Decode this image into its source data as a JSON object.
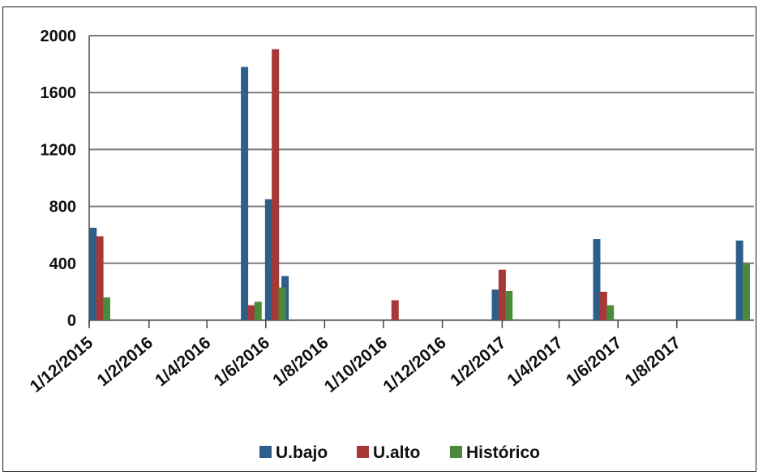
{
  "chart_data": {
    "type": "bar",
    "title": "",
    "xlabel": "",
    "ylabel": "",
    "ylim": [
      0,
      2000
    ],
    "y_ticks": [
      "2000",
      "1600",
      "1200",
      "800",
      "400",
      "0"
    ],
    "x_ticks": [
      "1/12/2015",
      "1/2/2016",
      "1/4/2016",
      "1/6/2016",
      "1/8/2016",
      "1/10/2016",
      "1/12/2016",
      "1/2/2017",
      "1/4/2017",
      "1/6/2017",
      "1/8/2017"
    ],
    "x_range": [
      "2015-12-01",
      "2017-10-20"
    ],
    "grid": "horizontal",
    "legend_position": "bottom",
    "series": [
      {
        "name": "U.bajo",
        "color": "#2e5e8a",
        "points": [
          {
            "date": "2015-12-05",
            "value": 650
          },
          {
            "date": "2016-05-10",
            "value": 1780
          },
          {
            "date": "2016-06-04",
            "value": 850
          },
          {
            "date": "2016-06-21",
            "value": 310
          },
          {
            "date": "2017-01-25",
            "value": 215
          },
          {
            "date": "2017-05-10",
            "value": 570
          },
          {
            "date": "2017-10-05",
            "value": 560
          }
        ]
      },
      {
        "name": "U.alto",
        "color": "#a83838",
        "points": [
          {
            "date": "2015-12-12",
            "value": 590
          },
          {
            "date": "2016-05-17",
            "value": 105
          },
          {
            "date": "2016-06-11",
            "value": 1905
          },
          {
            "date": "2016-10-13",
            "value": 140
          },
          {
            "date": "2017-02-01",
            "value": 355
          },
          {
            "date": "2017-05-17",
            "value": 200
          }
        ]
      },
      {
        "name": "Histórico",
        "color": "#4a8a3a",
        "points": [
          {
            "date": "2015-12-19",
            "value": 160
          },
          {
            "date": "2016-05-24",
            "value": 130
          },
          {
            "date": "2016-06-18",
            "value": 230
          },
          {
            "date": "2017-02-08",
            "value": 205
          },
          {
            "date": "2017-05-24",
            "value": 105
          },
          {
            "date": "2017-10-12",
            "value": 400
          }
        ]
      }
    ]
  }
}
